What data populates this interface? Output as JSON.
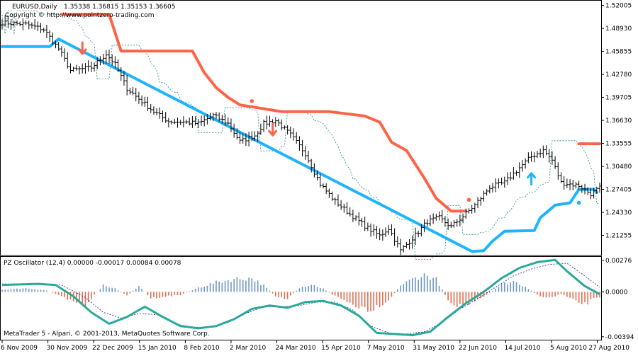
{
  "chart_header": {
    "symbol_timeframe": "EURUSD,Daily",
    "ohlc_text": "1.35338 1.36815 1.35153 1.36605",
    "copyright": "Copyright © http://www.pointzero-trading.com"
  },
  "oscillator_header": "PZ Oscillator (12,4) 0.00000 -0.00017 0.00084 0.00078",
  "footer_text": "MetaTrader 5 - Alpari, © 2001-2013, MetaQuotes Software Corp.",
  "colors": {
    "candles": "#000000",
    "bear_trail": "#ff6347",
    "bull_trail": "#1eb4ff",
    "band": "#1f8a8a",
    "osc_line": "#2aa89a",
    "osc_signal": "#1a1aa0",
    "hist_pos": "#6c96c8",
    "hist_neg": "#e06d50"
  },
  "chart_data": [
    {
      "type": "candlestick",
      "title": "EURUSD,Daily",
      "x_tick_labels": [
        "6 Nov 2009",
        "30 Nov 2009",
        "22 Dec 2009",
        "15 Jan 2010",
        "8 Feb 2010",
        "2 Mar 2010",
        "24 Mar 2010",
        "15 Apr 2010",
        "7 May 2010",
        "31 May 2010",
        "22 Jun 2010",
        "14 Jul 2010",
        "5 Aug 2010",
        "27 Aug 2010"
      ],
      "y_tick_labels": [
        "1.52005",
        "1.48930",
        "1.45855",
        "1.42780",
        "1.39705",
        "1.36630",
        "1.33555",
        "1.30480",
        "1.27405",
        "1.24330",
        "1.21255"
      ],
      "ylim": [
        1.1865,
        1.5235
      ],
      "close_keypoints": [
        [
          0,
          1.497
        ],
        [
          8,
          1.495
        ],
        [
          14,
          1.488
        ],
        [
          19,
          1.462
        ],
        [
          23,
          1.433
        ],
        [
          30,
          1.437
        ],
        [
          35,
          1.455
        ],
        [
          38,
          1.441
        ],
        [
          42,
          1.409
        ],
        [
          46,
          1.395
        ],
        [
          51,
          1.378
        ],
        [
          56,
          1.365
        ],
        [
          61,
          1.364
        ],
        [
          66,
          1.362
        ],
        [
          71,
          1.373
        ],
        [
          76,
          1.362
        ],
        [
          80,
          1.338
        ],
        [
          85,
          1.346
        ],
        [
          88,
          1.362
        ],
        [
          92,
          1.366
        ],
        [
          97,
          1.347
        ],
        [
          102,
          1.322
        ],
        [
          107,
          1.281
        ],
        [
          112,
          1.258
        ],
        [
          117,
          1.241
        ],
        [
          122,
          1.225
        ],
        [
          127,
          1.212
        ],
        [
          130,
          1.222
        ],
        [
          134,
          1.192
        ],
        [
          139,
          1.213
        ],
        [
          143,
          1.231
        ],
        [
          147,
          1.236
        ],
        [
          151,
          1.224
        ],
        [
          155,
          1.238
        ],
        [
          159,
          1.253
        ],
        [
          164,
          1.277
        ],
        [
          169,
          1.283
        ],
        [
          174,
          1.303
        ],
        [
          178,
          1.318
        ],
        [
          182,
          1.326
        ],
        [
          185,
          1.313
        ],
        [
          188,
          1.283
        ],
        [
          194,
          1.279
        ],
        [
          198,
          1.268
        ],
        [
          201,
          1.276
        ]
      ],
      "series": [
        {
          "name": "",
          "role": "bearish-trailing-stop",
          "points": [
            [
              20,
              1.508
            ],
            [
              36,
              1.508
            ],
            [
              40,
              1.459
            ],
            [
              64,
              1.459
            ],
            [
              68,
              1.43
            ],
            [
              72,
              1.41
            ],
            [
              76,
              1.397
            ],
            [
              80,
              1.387
            ],
            [
              94,
              1.378
            ],
            [
              110,
              1.378
            ],
            [
              122,
              1.372
            ],
            [
              127,
              1.364
            ],
            [
              131,
              1.337
            ],
            [
              136,
              1.326
            ],
            [
              142,
              1.289
            ],
            [
              146,
              1.262
            ],
            [
              151,
              1.245
            ],
            [
              156,
              1.245
            ]
          ]
        },
        {
          "name": "",
          "role": "bullish-trailing-stop",
          "points": [
            [
              0,
              1.465
            ],
            [
              16,
              1.465
            ],
            [
              19,
              1.475
            ],
            [
              158,
              1.191
            ],
            [
              162,
              1.192
            ],
            [
              165,
              1.205
            ],
            [
              169,
              1.218
            ],
            [
              179,
              1.219
            ],
            [
              181,
              1.236
            ],
            [
              186,
              1.253
            ],
            [
              191,
              1.256
            ],
            [
              194,
              1.274
            ],
            [
              199,
              1.274
            ],
            [
              200,
              1.27
            ]
          ]
        },
        {
          "name": "",
          "role": "bearish-stop-tail",
          "points": [
            [
              194,
              1.335
            ],
            [
              201,
              1.335
            ]
          ]
        }
      ],
      "arrows": [
        {
          "index": 27,
          "price": 1.462,
          "direction": "down"
        },
        {
          "index": 91,
          "price": 1.353,
          "direction": "down"
        },
        {
          "index": 178,
          "price": 1.289,
          "direction": "up"
        }
      ],
      "dots": [
        {
          "index": 84,
          "price": 1.392,
          "kind": "bear"
        },
        {
          "index": 157,
          "price": 1.26,
          "kind": "bear"
        },
        {
          "index": 194,
          "price": 1.256,
          "kind": "bull"
        }
      ],
      "grid": false
    },
    {
      "type": "histogram+line",
      "title": "PZ Oscillator (12,4)",
      "y_tick_labels": [
        "0.00276",
        "0.0000",
        "-0.00394"
      ],
      "ylim": [
        -0.0042,
        0.003
      ],
      "zero_level": 0.0,
      "osc_keypoints": [
        [
          0,
          0.0006
        ],
        [
          12,
          0.0007
        ],
        [
          18,
          0.0006
        ],
        [
          24,
          -0.0004
        ],
        [
          30,
          -0.0018
        ],
        [
          36,
          -0.0028
        ],
        [
          42,
          -0.0022
        ],
        [
          48,
          -0.0013
        ],
        [
          54,
          -0.0022
        ],
        [
          60,
          -0.003
        ],
        [
          66,
          -0.0032
        ],
        [
          72,
          -0.003
        ],
        [
          78,
          -0.0024
        ],
        [
          84,
          -0.0015
        ],
        [
          90,
          -0.0012
        ],
        [
          96,
          -0.0014
        ],
        [
          102,
          -0.0009
        ],
        [
          108,
          -0.0008
        ],
        [
          114,
          -0.0012
        ],
        [
          120,
          -0.0021
        ],
        [
          126,
          -0.0036
        ],
        [
          132,
          -0.0037
        ],
        [
          138,
          -0.0038
        ],
        [
          144,
          -0.0035
        ],
        [
          150,
          -0.0022
        ],
        [
          156,
          -0.001
        ],
        [
          162,
          0.0
        ],
        [
          168,
          0.0012
        ],
        [
          174,
          0.0021
        ],
        [
          180,
          0.0026
        ],
        [
          186,
          0.0028
        ],
        [
          190,
          0.0018
        ],
        [
          196,
          0.0005
        ],
        [
          201,
          -0.0002
        ]
      ],
      "signal_keypoints": [
        [
          0,
          0.0007
        ],
        [
          12,
          0.0007
        ],
        [
          20,
          0.0006
        ],
        [
          28,
          -0.0005
        ],
        [
          34,
          -0.0018
        ],
        [
          40,
          -0.0023
        ],
        [
          46,
          -0.0019
        ],
        [
          52,
          -0.002
        ],
        [
          58,
          -0.0028
        ],
        [
          64,
          -0.0031
        ],
        [
          70,
          -0.0031
        ],
        [
          76,
          -0.0027
        ],
        [
          82,
          -0.0019
        ],
        [
          88,
          -0.0013
        ],
        [
          94,
          -0.0013
        ],
        [
          100,
          -0.0012
        ],
        [
          106,
          -0.0009
        ],
        [
          112,
          -0.0009
        ],
        [
          118,
          -0.0016
        ],
        [
          124,
          -0.003
        ],
        [
          130,
          -0.0036
        ],
        [
          136,
          -0.0037
        ],
        [
          142,
          -0.0035
        ],
        [
          148,
          -0.0027
        ],
        [
          154,
          -0.0015
        ],
        [
          160,
          -0.0006
        ],
        [
          166,
          0.0004
        ],
        [
          172,
          0.0014
        ],
        [
          178,
          0.002
        ],
        [
          184,
          0.0024
        ],
        [
          190,
          0.0025
        ],
        [
          196,
          0.0014
        ],
        [
          201,
          0.0004
        ]
      ],
      "hist_keypoints": [
        [
          0,
          0.0002
        ],
        [
          8,
          0.0003
        ],
        [
          14,
          0.0002
        ],
        [
          18,
          -0.0002
        ],
        [
          22,
          -0.0007
        ],
        [
          28,
          -0.0012
        ],
        [
          34,
          0.0006
        ],
        [
          38,
          0.0003
        ],
        [
          42,
          -0.0004
        ],
        [
          46,
          0.0006
        ],
        [
          50,
          -0.0006
        ],
        [
          56,
          -0.0004
        ],
        [
          60,
          -0.0003
        ],
        [
          66,
          0.0004
        ],
        [
          72,
          0.0009
        ],
        [
          78,
          0.0012
        ],
        [
          84,
          0.0013
        ],
        [
          88,
          0.0006
        ],
        [
          92,
          -0.0004
        ],
        [
          96,
          -0.0007
        ],
        [
          100,
          0.0004
        ],
        [
          104,
          0.0007
        ],
        [
          108,
          0.0003
        ],
        [
          112,
          -0.0004
        ],
        [
          118,
          -0.0012
        ],
        [
          124,
          -0.0017
        ],
        [
          130,
          -0.0008
        ],
        [
          134,
          0.0006
        ],
        [
          138,
          0.0012
        ],
        [
          142,
          0.0016
        ],
        [
          146,
          0.0012
        ],
        [
          150,
          -0.0008
        ],
        [
          154,
          -0.0014
        ],
        [
          158,
          -0.0011
        ],
        [
          162,
          -0.0005
        ],
        [
          168,
          0.0007
        ],
        [
          172,
          0.001
        ],
        [
          176,
          0.0005
        ],
        [
          180,
          -0.0003
        ],
        [
          184,
          -0.0006
        ],
        [
          188,
          -0.0002
        ],
        [
          192,
          -0.0008
        ],
        [
          196,
          -0.0012
        ],
        [
          200,
          -0.0005
        ]
      ]
    }
  ]
}
